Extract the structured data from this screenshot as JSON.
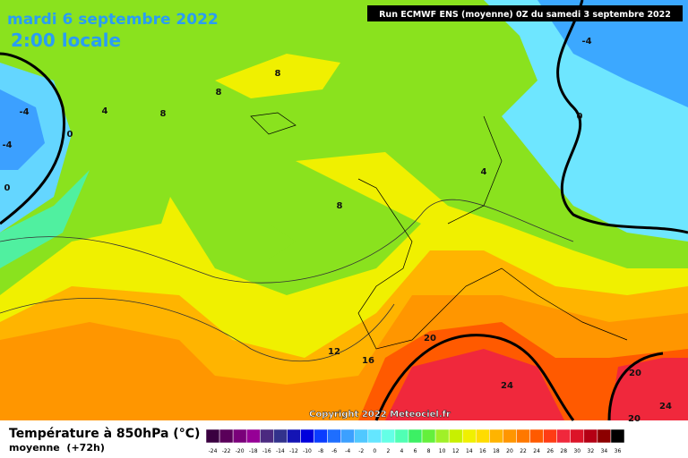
{
  "header": {
    "date": "mardi 6 septembre 2022",
    "time": "2:00 locale",
    "run": "Run ECMWF ENS (moyenne) 0Z du samedi 3 septembre 2022"
  },
  "copyright": "Copyright 2022 Meteociel.fr",
  "legend": {
    "title": "Température à 850hPa (°C)",
    "subtitle": "moyenne  (+72h)",
    "ticks": [
      -24,
      -22,
      -20,
      -18,
      -16,
      -14,
      -12,
      -10,
      -8,
      -6,
      -4,
      -2,
      0,
      2,
      4,
      6,
      8,
      10,
      12,
      14,
      16,
      18,
      20,
      22,
      24,
      26,
      28,
      30,
      32,
      34,
      36
    ],
    "colors": [
      "#3a0040",
      "#5a005a",
      "#7a007a",
      "#960096",
      "#4b2a80",
      "#32328c",
      "#1414b4",
      "#0000dc",
      "#0a3cff",
      "#1e6eff",
      "#3ca0ff",
      "#50c8ff",
      "#64e6ff",
      "#64ffe6",
      "#50ffb4",
      "#3cf064",
      "#64f03c",
      "#a0f028",
      "#c8f000",
      "#f0f000",
      "#ffdc00",
      "#ffb400",
      "#ff9600",
      "#ff7800",
      "#ff5a00",
      "#ff3c14",
      "#f0283c",
      "#dc1428",
      "#b40014",
      "#8c0000",
      "#000000"
    ]
  },
  "contour_labels": [
    8,
    8,
    8,
    4,
    -4,
    -4,
    0,
    0,
    -4,
    0,
    4,
    8,
    12,
    16,
    20,
    24,
    20,
    24,
    20
  ]
}
